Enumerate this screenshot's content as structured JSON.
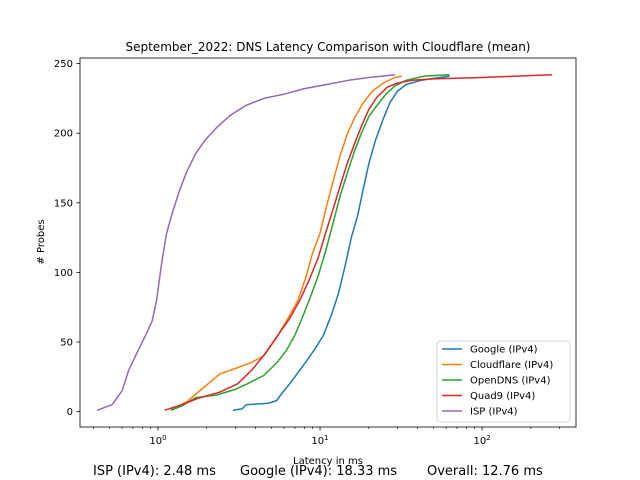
{
  "chart_data": {
    "type": "line",
    "title": "September_2022: DNS Latency Comparison with Cloudflare (mean)",
    "xlabel": "Latency in ms",
    "ylabel": "# Probes",
    "xscale": "log",
    "xlim": [
      0.33,
      380
    ],
    "ylim": [
      -11,
      254
    ],
    "xticks": [
      {
        "value": 1,
        "base": "10",
        "exp": "0"
      },
      {
        "value": 10,
        "base": "10",
        "exp": "1"
      },
      {
        "value": 100,
        "base": "10",
        "exp": "2"
      }
    ],
    "yticks": [
      0,
      50,
      100,
      150,
      200,
      250
    ],
    "legend_position": "bottom-right",
    "grid": false,
    "series": [
      {
        "name": "Google (IPv4)",
        "color": "#1f77b4",
        "points": [
          [
            2.9,
            1
          ],
          [
            3.3,
            2
          ],
          [
            3.5,
            5
          ],
          [
            4.8,
            6
          ],
          [
            5.4,
            8
          ],
          [
            5.8,
            13
          ],
          [
            6.5,
            20
          ],
          [
            7.2,
            27
          ],
          [
            8.2,
            36
          ],
          [
            9.3,
            45
          ],
          [
            10.5,
            55
          ],
          [
            11.8,
            70
          ],
          [
            13.0,
            85
          ],
          [
            14.3,
            105
          ],
          [
            15.6,
            125
          ],
          [
            17.0,
            140
          ],
          [
            18.5,
            160
          ],
          [
            20.0,
            178
          ],
          [
            22.0,
            195
          ],
          [
            24.5,
            210
          ],
          [
            27.0,
            222
          ],
          [
            30.0,
            230
          ],
          [
            34.0,
            235
          ],
          [
            42.0,
            238
          ],
          [
            55.0,
            240
          ],
          [
            63.0,
            241
          ]
        ]
      },
      {
        "name": "Cloudflare (IPv4)",
        "color": "#ff7f0e",
        "points": [
          [
            1.2,
            1
          ],
          [
            1.5,
            7
          ],
          [
            1.9,
            17
          ],
          [
            2.4,
            27
          ],
          [
            3.0,
            31
          ],
          [
            3.7,
            35
          ],
          [
            4.5,
            40
          ],
          [
            5.3,
            52
          ],
          [
            6.2,
            65
          ],
          [
            7.3,
            80
          ],
          [
            8.2,
            97
          ],
          [
            9.0,
            114
          ],
          [
            10.0,
            128
          ],
          [
            11.0,
            148
          ],
          [
            12.2,
            168
          ],
          [
            13.4,
            185
          ],
          [
            14.8,
            200
          ],
          [
            16.5,
            212
          ],
          [
            18.5,
            222
          ],
          [
            21.0,
            230
          ],
          [
            24.5,
            236
          ],
          [
            29.0,
            240
          ],
          [
            32.0,
            241
          ]
        ]
      },
      {
        "name": "OpenDNS (IPv4)",
        "color": "#2ca02c",
        "points": [
          [
            1.2,
            1
          ],
          [
            1.4,
            4
          ],
          [
            1.7,
            10
          ],
          [
            2.3,
            12
          ],
          [
            3.0,
            16
          ],
          [
            3.7,
            21
          ],
          [
            4.5,
            26
          ],
          [
            5.4,
            35
          ],
          [
            6.2,
            44
          ],
          [
            7.0,
            55
          ],
          [
            7.8,
            68
          ],
          [
            8.7,
            82
          ],
          [
            9.7,
            97
          ],
          [
            10.8,
            115
          ],
          [
            12.0,
            135
          ],
          [
            13.3,
            155
          ],
          [
            14.8,
            172
          ],
          [
            16.3,
            187
          ],
          [
            18.0,
            200
          ],
          [
            20.0,
            212
          ],
          [
            22.5,
            220
          ],
          [
            25.5,
            228
          ],
          [
            29.0,
            234
          ],
          [
            34.0,
            238
          ],
          [
            44.0,
            241
          ],
          [
            63.0,
            242
          ]
        ]
      },
      {
        "name": "Quad9 (IPv4)",
        "color": "#d62728",
        "points": [
          [
            1.1,
            1
          ],
          [
            1.4,
            5
          ],
          [
            1.8,
            10
          ],
          [
            2.4,
            14
          ],
          [
            3.1,
            20
          ],
          [
            3.8,
            30
          ],
          [
            4.6,
            42
          ],
          [
            5.5,
            55
          ],
          [
            6.5,
            67
          ],
          [
            7.5,
            80
          ],
          [
            8.6,
            95
          ],
          [
            9.7,
            110
          ],
          [
            10.8,
            128
          ],
          [
            12.0,
            145
          ],
          [
            13.3,
            162
          ],
          [
            14.7,
            178
          ],
          [
            16.3,
            192
          ],
          [
            18.0,
            205
          ],
          [
            20.0,
            217
          ],
          [
            22.5,
            226
          ],
          [
            26.0,
            233
          ],
          [
            30.0,
            236
          ],
          [
            37.0,
            238
          ],
          [
            50.0,
            239
          ],
          [
            100.0,
            240
          ],
          [
            270.0,
            242
          ]
        ]
      },
      {
        "name": "ISP (IPv4)",
        "color": "#9467bd",
        "points": [
          [
            0.42,
            1
          ],
          [
            0.52,
            5
          ],
          [
            0.6,
            15
          ],
          [
            0.66,
            30
          ],
          [
            0.74,
            42
          ],
          [
            0.84,
            55
          ],
          [
            0.92,
            65
          ],
          [
            0.98,
            80
          ],
          [
            1.02,
            95
          ],
          [
            1.07,
            112
          ],
          [
            1.13,
            128
          ],
          [
            1.22,
            142
          ],
          [
            1.35,
            158
          ],
          [
            1.5,
            172
          ],
          [
            1.7,
            185
          ],
          [
            1.95,
            195
          ],
          [
            2.3,
            204
          ],
          [
            2.8,
            213
          ],
          [
            3.5,
            220
          ],
          [
            4.5,
            225
          ],
          [
            6.0,
            228
          ],
          [
            8.0,
            232
          ],
          [
            11.0,
            235
          ],
          [
            15.0,
            238
          ],
          [
            20.0,
            240
          ],
          [
            29.0,
            242
          ]
        ]
      }
    ]
  },
  "footer": {
    "isp": "ISP (IPv4): 2.48 ms",
    "google": "Google (IPv4): 18.33 ms",
    "overall": "Overall: 12.76 ms"
  }
}
